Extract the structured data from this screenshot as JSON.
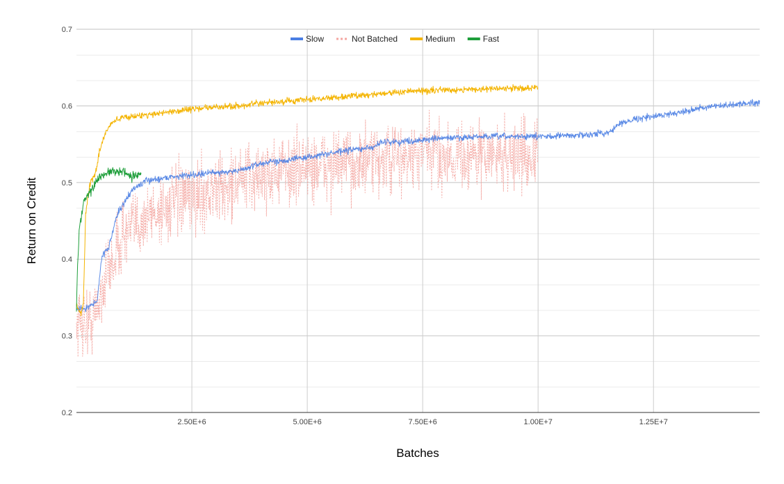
{
  "chart_data": {
    "type": "line",
    "title": "",
    "xlabel": "Batches",
    "ylabel": "Return on Credit",
    "xlim": [
      0,
      14800000
    ],
    "ylim": [
      0.2,
      0.7
    ],
    "x_ticks": [
      {
        "value": 2500000,
        "label": "2.50E+6"
      },
      {
        "value": 5000000,
        "label": "5.00E+6"
      },
      {
        "value": 7500000,
        "label": "7.50E+6"
      },
      {
        "value": 10000000,
        "label": "1.00E+7"
      },
      {
        "value": 12500000,
        "label": "1.25E+7"
      }
    ],
    "y_ticks": [
      {
        "value": 0.2,
        "label": "0.2"
      },
      {
        "value": 0.3,
        "label": "0.3"
      },
      {
        "value": 0.4,
        "label": "0.4"
      },
      {
        "value": 0.5,
        "label": "0.5"
      },
      {
        "value": 0.6,
        "label": "0.6"
      },
      {
        "value": 0.7,
        "label": "0.7"
      }
    ],
    "y_minor_step": 0.0333,
    "grid": true,
    "legend_position": "top-center",
    "series": [
      {
        "name": "Not Batched",
        "color": "#f4a6a1",
        "style": "dotted",
        "noise": 0.045,
        "x": [
          0,
          200000,
          400000,
          600000,
          800000,
          1000000,
          1200000,
          1500000,
          2000000,
          2500000,
          3000000,
          3500000,
          4000000,
          5000000,
          6000000,
          7000000,
          7500000,
          8000000,
          9000000,
          10000000
        ],
        "y": [
          0.32,
          0.315,
          0.325,
          0.37,
          0.4,
          0.43,
          0.44,
          0.455,
          0.47,
          0.48,
          0.49,
          0.5,
          0.51,
          0.52,
          0.525,
          0.53,
          0.535,
          0.535,
          0.535,
          0.535
        ]
      },
      {
        "name": "Slow",
        "color": "#4a7ee3",
        "style": "solid",
        "noise": 0.004,
        "x": [
          0,
          200000,
          300000,
          450000,
          550000,
          700000,
          800000,
          900000,
          1000000,
          1200000,
          1500000,
          2000000,
          2500000,
          3000000,
          3500000,
          4000000,
          5000000,
          6000000,
          6400000,
          6600000,
          7000000,
          8000000,
          9000000,
          10000000,
          11000000,
          11500000,
          11800000,
          12000000,
          12500000,
          13000000,
          13500000,
          14000000,
          14800000
        ],
        "y": [
          0.335,
          0.335,
          0.34,
          0.345,
          0.405,
          0.415,
          0.44,
          0.46,
          0.47,
          0.49,
          0.502,
          0.507,
          0.51,
          0.513,
          0.515,
          0.525,
          0.533,
          0.543,
          0.545,
          0.553,
          0.553,
          0.558,
          0.56,
          0.56,
          0.562,
          0.565,
          0.577,
          0.582,
          0.586,
          0.591,
          0.597,
          0.6,
          0.605
        ]
      },
      {
        "name": "Medium",
        "color": "#f4b400",
        "style": "solid",
        "noise": 0.004,
        "x": [
          0,
          50000,
          100000,
          150000,
          200000,
          300000,
          400000,
          500000,
          600000,
          700000,
          800000,
          1000000,
          1500000,
          2000000,
          2500000,
          3000000,
          3500000,
          4000000,
          5000000,
          6000000,
          7000000,
          8000000,
          9000000,
          10000000
        ],
        "y": [
          0.34,
          0.335,
          0.33,
          0.34,
          0.46,
          0.5,
          0.51,
          0.54,
          0.56,
          0.572,
          0.58,
          0.585,
          0.588,
          0.592,
          0.596,
          0.598,
          0.6,
          0.603,
          0.608,
          0.613,
          0.618,
          0.621,
          0.622,
          0.624
        ]
      },
      {
        "name": "Fast",
        "color": "#1e9e3a",
        "style": "solid",
        "noise": 0.006,
        "x": [
          0,
          30000,
          60000,
          100000,
          150000,
          200000,
          300000,
          400000,
          500000,
          600000,
          700000,
          800000,
          900000,
          1000000,
          1100000,
          1200000,
          1300000,
          1400000
        ],
        "y": [
          0.335,
          0.4,
          0.44,
          0.455,
          0.47,
          0.48,
          0.487,
          0.5,
          0.507,
          0.51,
          0.513,
          0.515,
          0.513,
          0.515,
          0.51,
          0.505,
          0.51,
          0.51
        ]
      }
    ],
    "plot_order": [
      "Not Batched",
      "Slow",
      "Medium",
      "Fast"
    ]
  }
}
